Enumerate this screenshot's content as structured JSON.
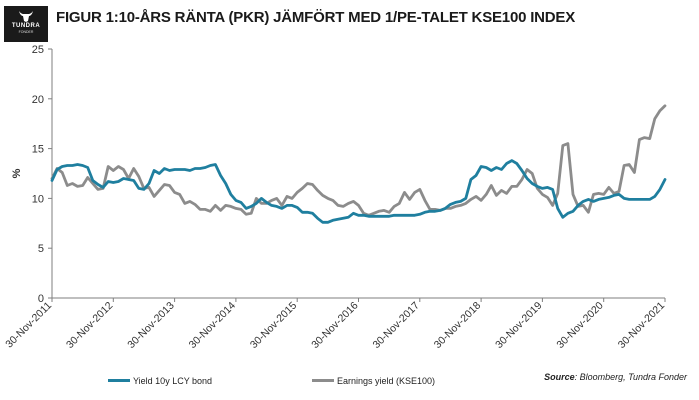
{
  "header": {
    "logo_name": "TUNDRA",
    "logo_sub": "FONDER",
    "title": "FIGUR 1:10-ÅRS RÄNTA (PKR) JÄMFÖRT MED 1/PE-TALET KSE100 INDEX"
  },
  "source": {
    "prefix": "Source",
    "text": ": Bloomberg, Tundra Fonder"
  },
  "colors": {
    "yield": "#1f7f9f",
    "earnings": "#8c8c8c",
    "axis": "#7f7f7f"
  },
  "chart_data": {
    "type": "line",
    "ylabel": "%",
    "ylim": [
      0,
      25
    ],
    "yticks": [
      0,
      5,
      10,
      15,
      20,
      25
    ],
    "xlim": [
      2011.917,
      2021.917
    ],
    "xticks": [
      {
        "x": 2011.917,
        "label": "30-Nov-2011"
      },
      {
        "x": 2012.917,
        "label": "30-Nov-2012"
      },
      {
        "x": 2013.917,
        "label": "30-Nov-2013"
      },
      {
        "x": 2014.917,
        "label": "30-Nov-2014"
      },
      {
        "x": 2015.917,
        "label": "30-Nov-2015"
      },
      {
        "x": 2016.917,
        "label": "30-Nov-2016"
      },
      {
        "x": 2017.917,
        "label": "30-Nov-2017"
      },
      {
        "x": 2018.917,
        "label": "30-Nov-2018"
      },
      {
        "x": 2019.917,
        "label": "30-Nov-2019"
      },
      {
        "x": 2020.917,
        "label": "30-Nov-2020"
      },
      {
        "x": 2021.917,
        "label": "30-Nov-2021"
      }
    ],
    "grid": false,
    "legend": "bottom",
    "series": [
      {
        "name": "Yield 10y LCY bond",
        "x": [
          2011.917,
          2012.0,
          2012.083,
          2012.167,
          2012.25,
          2012.333,
          2012.417,
          2012.5,
          2012.583,
          2012.667,
          2012.75,
          2012.833,
          2012.917,
          2013.0,
          2013.083,
          2013.167,
          2013.25,
          2013.333,
          2013.417,
          2013.5,
          2013.583,
          2013.667,
          2013.75,
          2013.833,
          2013.917,
          2014.0,
          2014.083,
          2014.167,
          2014.25,
          2014.333,
          2014.417,
          2014.5,
          2014.583,
          2014.667,
          2014.75,
          2014.833,
          2014.917,
          2015.0,
          2015.083,
          2015.167,
          2015.25,
          2015.333,
          2015.417,
          2015.5,
          2015.583,
          2015.667,
          2015.75,
          2015.833,
          2015.917,
          2016.0,
          2016.083,
          2016.167,
          2016.25,
          2016.333,
          2016.417,
          2016.5,
          2016.583,
          2016.667,
          2016.75,
          2016.833,
          2016.917,
          2017.0,
          2017.083,
          2017.167,
          2017.25,
          2017.333,
          2017.417,
          2017.5,
          2017.583,
          2017.667,
          2017.75,
          2017.833,
          2017.917,
          2018.0,
          2018.083,
          2018.167,
          2018.25,
          2018.333,
          2018.417,
          2018.5,
          2018.583,
          2018.667,
          2018.75,
          2018.833,
          2018.917,
          2019.0,
          2019.083,
          2019.167,
          2019.25,
          2019.333,
          2019.417,
          2019.5,
          2019.583,
          2019.667,
          2019.75,
          2019.833,
          2019.917,
          2020.0,
          2020.083,
          2020.167,
          2020.25,
          2020.333,
          2020.417,
          2020.5,
          2020.583,
          2020.667,
          2020.75,
          2020.833,
          2020.917,
          2021.0,
          2021.083,
          2021.167,
          2021.25,
          2021.333,
          2021.417,
          2021.5,
          2021.583,
          2021.667,
          2021.75,
          2021.833,
          2021.917
        ],
        "values": [
          11.8,
          12.9,
          13.2,
          13.3,
          13.3,
          13.4,
          13.3,
          13.1,
          11.8,
          11.4,
          11.1,
          11.7,
          11.6,
          11.7,
          12.0,
          11.9,
          11.8,
          11.0,
          10.9,
          11.5,
          12.8,
          12.5,
          13.0,
          12.8,
          12.9,
          12.9,
          12.9,
          12.8,
          13.0,
          13.0,
          13.1,
          13.3,
          13.4,
          12.3,
          11.5,
          10.4,
          9.8,
          9.6,
          9.0,
          9.2,
          9.5,
          10.0,
          9.6,
          9.3,
          9.2,
          9.0,
          9.3,
          9.3,
          9.1,
          8.6,
          8.6,
          8.5,
          8.0,
          7.6,
          7.6,
          7.8,
          7.9,
          8.0,
          8.1,
          8.5,
          8.3,
          8.3,
          8.2,
          8.2,
          8.2,
          8.2,
          8.2,
          8.3,
          8.3,
          8.3,
          8.3,
          8.3,
          8.4,
          8.6,
          8.7,
          8.7,
          8.8,
          9.0,
          9.4,
          9.6,
          9.7,
          10.0,
          11.9,
          12.3,
          13.2,
          13.1,
          12.8,
          13.1,
          12.9,
          13.5,
          13.8,
          13.5,
          12.8,
          12.0,
          11.5,
          11.2,
          11.0,
          11.1,
          10.9,
          9.0,
          8.1,
          8.5,
          8.7,
          9.3,
          9.7,
          9.9,
          9.7,
          9.9,
          10.0,
          10.1,
          10.3,
          10.4,
          10.0,
          9.9,
          9.9,
          9.9,
          9.9,
          9.9,
          10.2,
          10.9,
          11.9
        ]
      },
      {
        "name": "Earnings yield (KSE100)",
        "x": [
          2011.917,
          2012.0,
          2012.083,
          2012.167,
          2012.25,
          2012.333,
          2012.417,
          2012.5,
          2012.583,
          2012.667,
          2012.75,
          2012.833,
          2012.917,
          2013.0,
          2013.083,
          2013.167,
          2013.25,
          2013.333,
          2013.417,
          2013.5,
          2013.583,
          2013.667,
          2013.75,
          2013.833,
          2013.917,
          2014.0,
          2014.083,
          2014.167,
          2014.25,
          2014.333,
          2014.417,
          2014.5,
          2014.583,
          2014.667,
          2014.75,
          2014.833,
          2014.917,
          2015.0,
          2015.083,
          2015.167,
          2015.25,
          2015.333,
          2015.417,
          2015.5,
          2015.583,
          2015.667,
          2015.75,
          2015.833,
          2015.917,
          2016.0,
          2016.083,
          2016.167,
          2016.25,
          2016.333,
          2016.417,
          2016.5,
          2016.583,
          2016.667,
          2016.75,
          2016.833,
          2016.917,
          2017.0,
          2017.083,
          2017.167,
          2017.25,
          2017.333,
          2017.417,
          2017.5,
          2017.583,
          2017.667,
          2017.75,
          2017.833,
          2017.917,
          2018.0,
          2018.083,
          2018.167,
          2018.25,
          2018.333,
          2018.417,
          2018.5,
          2018.583,
          2018.667,
          2018.75,
          2018.833,
          2018.917,
          2019.0,
          2019.083,
          2019.167,
          2019.25,
          2019.333,
          2019.417,
          2019.5,
          2019.583,
          2019.667,
          2019.75,
          2019.833,
          2019.917,
          2020.0,
          2020.083,
          2020.167,
          2020.25,
          2020.333,
          2020.417,
          2020.5,
          2020.583,
          2020.667,
          2020.75,
          2020.833,
          2020.917,
          2021.0,
          2021.083,
          2021.167,
          2021.25,
          2021.333,
          2021.417,
          2021.5,
          2021.583,
          2021.667,
          2021.75,
          2021.833,
          2021.917
        ],
        "values": [
          12.0,
          13.0,
          12.6,
          11.3,
          11.5,
          11.2,
          11.3,
          12.1,
          11.5,
          10.9,
          11.0,
          13.2,
          12.8,
          13.2,
          12.9,
          12.0,
          13.0,
          12.2,
          11.0,
          11.1,
          10.2,
          10.8,
          11.4,
          11.3,
          10.6,
          10.4,
          9.5,
          9.7,
          9.4,
          8.9,
          8.9,
          8.7,
          9.3,
          8.8,
          9.3,
          9.2,
          9.0,
          8.9,
          8.4,
          8.5,
          10.0,
          9.5,
          9.5,
          9.8,
          10.0,
          9.3,
          10.2,
          10.0,
          10.6,
          11.0,
          11.5,
          11.4,
          10.8,
          10.3,
          10.0,
          9.8,
          9.3,
          9.2,
          9.5,
          9.7,
          9.3,
          8.5,
          8.3,
          8.5,
          8.7,
          8.8,
          8.6,
          9.2,
          9.5,
          10.6,
          9.9,
          10.6,
          10.9,
          9.8,
          8.9,
          8.9,
          8.8,
          9.0,
          9.0,
          9.2,
          9.3,
          9.5,
          9.9,
          10.2,
          9.8,
          10.4,
          11.3,
          10.3,
          10.8,
          10.5,
          11.2,
          11.2,
          11.9,
          12.9,
          12.5,
          11.0,
          10.4,
          10.1,
          9.3,
          10.5,
          15.3,
          15.5,
          10.4,
          9.2,
          9.3,
          8.6,
          10.4,
          10.5,
          10.4,
          11.1,
          10.5,
          10.7,
          13.3,
          13.4,
          12.6,
          15.9,
          16.1,
          16.0,
          18.0,
          18.8,
          19.3
        ]
      }
    ]
  }
}
